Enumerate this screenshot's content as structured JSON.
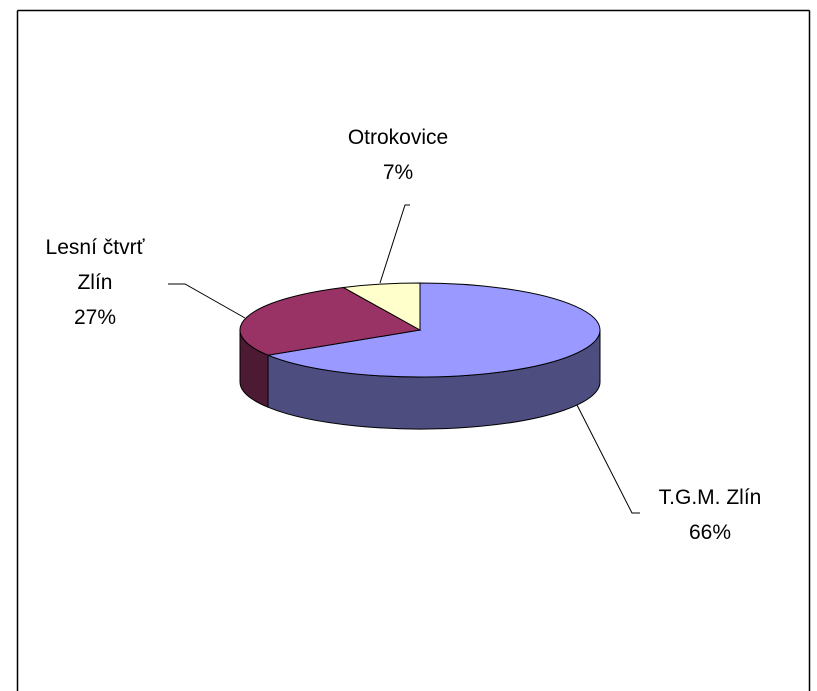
{
  "chart_data": {
    "type": "pie",
    "categories": [
      "T.G.M. Zlín",
      "Lesní čtvrť Zlín",
      "Otrokovice"
    ],
    "values": [
      66,
      27,
      7
    ],
    "value_labels": [
      "66%",
      "27%",
      "7%"
    ],
    "colors": [
      "#9999ff",
      "#993366",
      "#ffffcc"
    ],
    "three_d": true
  }
}
